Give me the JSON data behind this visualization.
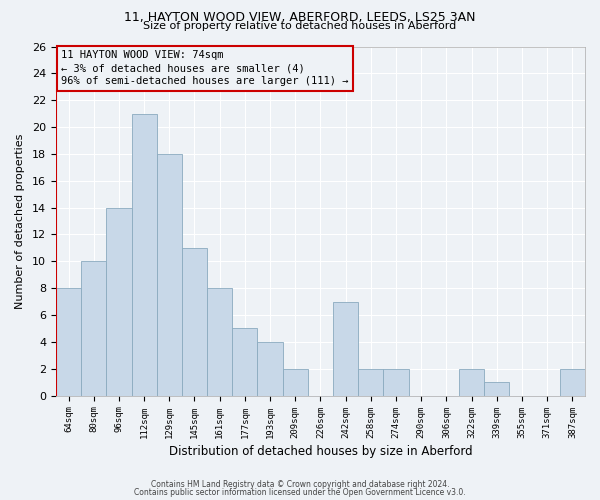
{
  "title1": "11, HAYTON WOOD VIEW, ABERFORD, LEEDS, LS25 3AN",
  "title2": "Size of property relative to detached houses in Aberford",
  "xlabel": "Distribution of detached houses by size in Aberford",
  "ylabel": "Number of detached properties",
  "footer1": "Contains HM Land Registry data © Crown copyright and database right 2024.",
  "footer2": "Contains public sector information licensed under the Open Government Licence v3.0.",
  "annotation_line1": "11 HAYTON WOOD VIEW: 74sqm",
  "annotation_line2": "← 3% of detached houses are smaller (4)",
  "annotation_line3": "96% of semi-detached houses are larger (111) →",
  "bar_color": "#c8d8e8",
  "bar_edge_color": "#8aaabf",
  "annotation_box_edge_color": "#cc0000",
  "annotation_line_color": "#cc0000",
  "categories": [
    "64sqm",
    "80sqm",
    "96sqm",
    "112sqm",
    "129sqm",
    "145sqm",
    "161sqm",
    "177sqm",
    "193sqm",
    "209sqm",
    "226sqm",
    "242sqm",
    "258sqm",
    "274sqm",
    "290sqm",
    "306sqm",
    "322sqm",
    "339sqm",
    "355sqm",
    "371sqm",
    "387sqm"
  ],
  "values": [
    8,
    10,
    14,
    21,
    18,
    11,
    8,
    5,
    4,
    2,
    0,
    7,
    2,
    2,
    0,
    0,
    2,
    1,
    0,
    0,
    2
  ],
  "ylim": [
    0,
    26
  ],
  "yticks": [
    0,
    2,
    4,
    6,
    8,
    10,
    12,
    14,
    16,
    18,
    20,
    22,
    24,
    26
  ],
  "bg_color": "#eef2f6",
  "grid_color": "#ffffff"
}
